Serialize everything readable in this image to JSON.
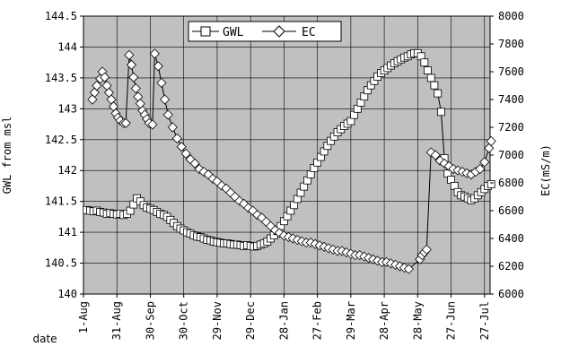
{
  "chart_data": {
    "type": "line",
    "background": "#c0c0c0",
    "grid": true,
    "legend_placement": "top-center",
    "xlabel": "date",
    "categories": [
      "1-Aug",
      "31-Aug",
      "30-Sep",
      "30-Oct",
      "29-Nov",
      "29-Dec",
      "28-Jan",
      "27-Feb",
      "29-Mar",
      "28-Apr",
      "28-May",
      "27-Jun",
      "27-Jul"
    ],
    "x_range_days": [
      0,
      365
    ],
    "y_left": {
      "label": "GWL from msl",
      "ylim": [
        140,
        144.5
      ],
      "ticks": [
        "140",
        "140.5",
        "141",
        "141.5",
        "142",
        "142.5",
        "143",
        "143.5",
        "144",
        "144.5"
      ]
    },
    "y_right": {
      "label": "EC(mS/m)",
      "ylim": [
        6000,
        8000
      ],
      "ticks": [
        "6000",
        "6200",
        "6400",
        "6600",
        "6800",
        "7000",
        "7200",
        "7400",
        "7600",
        "7800",
        "8000"
      ]
    },
    "series": [
      {
        "name": "GWL",
        "axis": "left",
        "marker": "square",
        "points": [
          [
            3,
            141.36
          ],
          [
            6,
            141.35
          ],
          [
            9,
            141.34
          ],
          [
            12,
            141.35
          ],
          [
            15,
            141.33
          ],
          [
            18,
            141.32
          ],
          [
            21,
            141.3
          ],
          [
            24,
            141.31
          ],
          [
            27,
            141.3
          ],
          [
            30,
            141.29
          ],
          [
            33,
            141.3
          ],
          [
            36,
            141.28
          ],
          [
            39,
            141.3
          ],
          [
            42,
            141.35
          ],
          [
            45,
            141.45
          ],
          [
            48,
            141.55
          ],
          [
            51,
            141.5
          ],
          [
            54,
            141.44
          ],
          [
            57,
            141.4
          ],
          [
            60,
            141.38
          ],
          [
            63,
            141.36
          ],
          [
            66,
            141.33
          ],
          [
            69,
            141.3
          ],
          [
            72,
            141.28
          ],
          [
            75,
            141.25
          ],
          [
            78,
            141.2
          ],
          [
            81,
            141.15
          ],
          [
            84,
            141.1
          ],
          [
            87,
            141.06
          ],
          [
            90,
            141.03
          ],
          [
            93,
            141.0
          ],
          [
            96,
            140.98
          ],
          [
            99,
            140.95
          ],
          [
            102,
            140.93
          ],
          [
            105,
            140.92
          ],
          [
            108,
            140.9
          ],
          [
            111,
            140.88
          ],
          [
            114,
            140.87
          ],
          [
            117,
            140.85
          ],
          [
            120,
            140.84
          ],
          [
            123,
            140.83
          ],
          [
            126,
            140.82
          ],
          [
            129,
            140.82
          ],
          [
            132,
            140.81
          ],
          [
            135,
            140.8
          ],
          [
            138,
            140.8
          ],
          [
            141,
            140.79
          ],
          [
            144,
            140.78
          ],
          [
            147,
            140.79
          ],
          [
            150,
            140.78
          ],
          [
            153,
            140.77
          ],
          [
            156,
            140.78
          ],
          [
            159,
            140.8
          ],
          [
            162,
            140.82
          ],
          [
            165,
            140.85
          ],
          [
            168,
            140.9
          ],
          [
            171,
            140.95
          ],
          [
            174,
            141.02
          ],
          [
            177,
            141.1
          ],
          [
            180,
            141.18
          ],
          [
            183,
            141.26
          ],
          [
            186,
            141.35
          ],
          [
            189,
            141.44
          ],
          [
            192,
            141.54
          ],
          [
            195,
            141.64
          ],
          [
            198,
            141.74
          ],
          [
            201,
            141.84
          ],
          [
            204,
            141.94
          ],
          [
            207,
            142.04
          ],
          [
            210,
            142.13
          ],
          [
            213,
            142.22
          ],
          [
            216,
            142.31
          ],
          [
            219,
            142.4
          ],
          [
            222,
            142.48
          ],
          [
            225,
            142.55
          ],
          [
            228,
            142.62
          ],
          [
            231,
            142.67
          ],
          [
            234,
            142.72
          ],
          [
            237,
            142.76
          ],
          [
            240,
            142.8
          ],
          [
            243,
            142.9
          ],
          [
            246,
            143.0
          ],
          [
            249,
            143.1
          ],
          [
            252,
            143.2
          ],
          [
            255,
            143.3
          ],
          [
            258,
            143.38
          ],
          [
            261,
            143.45
          ],
          [
            264,
            143.52
          ],
          [
            267,
            143.58
          ],
          [
            270,
            143.62
          ],
          [
            273,
            143.66
          ],
          [
            276,
            143.7
          ],
          [
            279,
            143.74
          ],
          [
            282,
            143.77
          ],
          [
            285,
            143.8
          ],
          [
            288,
            143.83
          ],
          [
            291,
            143.85
          ],
          [
            294,
            143.88
          ],
          [
            297,
            143.9
          ],
          [
            300,
            143.9
          ],
          [
            303,
            143.85
          ],
          [
            306,
            143.75
          ],
          [
            309,
            143.62
          ],
          [
            312,
            143.5
          ],
          [
            315,
            143.38
          ],
          [
            318,
            143.25
          ],
          [
            321,
            142.95
          ],
          [
            324,
            142.2
          ],
          [
            327,
            141.95
          ],
          [
            330,
            141.85
          ],
          [
            333,
            141.75
          ],
          [
            336,
            141.65
          ],
          [
            339,
            141.6
          ],
          [
            342,
            141.58
          ],
          [
            345,
            141.55
          ],
          [
            348,
            141.52
          ],
          [
            351,
            141.55
          ],
          [
            354,
            141.6
          ],
          [
            357,
            141.65
          ],
          [
            360,
            141.7
          ],
          [
            363,
            141.75
          ],
          [
            366,
            141.78
          ]
        ]
      },
      {
        "name": "EC",
        "axis": "right",
        "marker": "diamond",
        "points": [
          [
            8,
            7400
          ],
          [
            10,
            7450
          ],
          [
            12,
            7500
          ],
          [
            15,
            7550
          ],
          [
            17,
            7600
          ],
          [
            19,
            7560
          ],
          [
            21,
            7500
          ],
          [
            23,
            7450
          ],
          [
            25,
            7400
          ],
          [
            27,
            7350
          ],
          [
            29,
            7300
          ],
          [
            31,
            7270
          ],
          [
            33,
            7250
          ],
          [
            36,
            7230
          ],
          [
            38,
            7230
          ],
          [
            41,
            7720
          ],
          [
            43,
            7650
          ],
          [
            45,
            7560
          ],
          [
            47,
            7480
          ],
          [
            49,
            7420
          ],
          [
            51,
            7370
          ],
          [
            53,
            7320
          ],
          [
            55,
            7290
          ],
          [
            57,
            7260
          ],
          [
            59,
            7230
          ],
          [
            62,
            7220
          ],
          [
            64,
            7730
          ],
          [
            67,
            7640
          ],
          [
            70,
            7520
          ],
          [
            73,
            7400
          ],
          [
            76,
            7290
          ],
          [
            80,
            7200
          ],
          [
            84,
            7120
          ],
          [
            88,
            7060
          ],
          [
            92,
            7010
          ],
          [
            96,
            6970
          ],
          [
            100,
            6940
          ],
          [
            104,
            6900
          ],
          [
            108,
            6880
          ],
          [
            112,
            6860
          ],
          [
            116,
            6830
          ],
          [
            120,
            6810
          ],
          [
            124,
            6780
          ],
          [
            128,
            6760
          ],
          [
            132,
            6730
          ],
          [
            136,
            6700
          ],
          [
            140,
            6670
          ],
          [
            144,
            6650
          ],
          [
            148,
            6620
          ],
          [
            152,
            6600
          ],
          [
            156,
            6570
          ],
          [
            160,
            6550
          ],
          [
            164,
            6520
          ],
          [
            168,
            6490
          ],
          [
            172,
            6460
          ],
          [
            176,
            6440
          ],
          [
            180,
            6420
          ],
          [
            184,
            6410
          ],
          [
            188,
            6400
          ],
          [
            192,
            6390
          ],
          [
            196,
            6380
          ],
          [
            200,
            6370
          ],
          [
            204,
            6370
          ],
          [
            208,
            6360
          ],
          [
            212,
            6350
          ],
          [
            216,
            6340
          ],
          [
            220,
            6330
          ],
          [
            224,
            6320
          ],
          [
            228,
            6310
          ],
          [
            232,
            6310
          ],
          [
            236,
            6300
          ],
          [
            240,
            6290
          ],
          [
            244,
            6280
          ],
          [
            248,
            6280
          ],
          [
            252,
            6270
          ],
          [
            256,
            6260
          ],
          [
            260,
            6250
          ],
          [
            264,
            6240
          ],
          [
            268,
            6230
          ],
          [
            272,
            6230
          ],
          [
            276,
            6220
          ],
          [
            280,
            6210
          ],
          [
            284,
            6200
          ],
          [
            288,
            6190
          ],
          [
            292,
            6180
          ],
          [
            302,
            6250
          ],
          [
            304,
            6280
          ],
          [
            306,
            6300
          ],
          [
            308,
            6320
          ],
          [
            312,
            7020
          ],
          [
            316,
            7000
          ],
          [
            320,
            6960
          ],
          [
            324,
            6940
          ],
          [
            328,
            6920
          ],
          [
            332,
            6900
          ],
          [
            336,
            6890
          ],
          [
            340,
            6880
          ],
          [
            344,
            6870
          ],
          [
            348,
            6860
          ],
          [
            352,
            6880
          ],
          [
            356,
            6900
          ],
          [
            360,
            6950
          ],
          [
            364,
            7050
          ],
          [
            366,
            7100
          ]
        ]
      }
    ]
  }
}
